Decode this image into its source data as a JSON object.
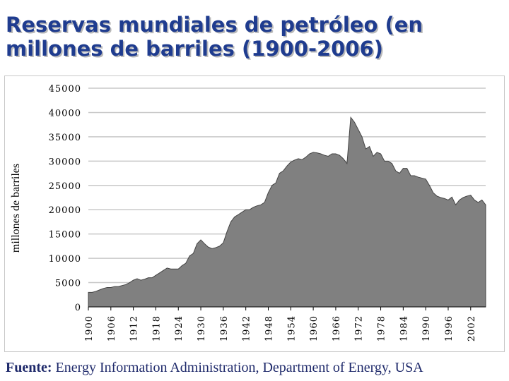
{
  "slide": {
    "title": "Reservas mundiales de petróleo (en millones de barriles (1900-2006)",
    "footer_label": "Fuente:",
    "footer_text": "Energy Information Administration, Department of Energy, USA"
  },
  "colors": {
    "title": "#1f3c8f",
    "area_fill": "#808080",
    "area_stroke": "#444444",
    "grid": "#c8c8c8",
    "footer": "#1f2a6b"
  },
  "chart_data": {
    "type": "area",
    "title": "",
    "xlabel": "",
    "ylabel": "millones de barriles",
    "xlim": [
      1900,
      2006
    ],
    "ylim": [
      0,
      45000
    ],
    "yticks": [
      0,
      5000,
      10000,
      15000,
      20000,
      25000,
      30000,
      35000,
      40000,
      45000
    ],
    "ytick_labels": [
      "0",
      "5000",
      "10000",
      "15000",
      "20000",
      "25000",
      "30000",
      "35000",
      "40000",
      "45000"
    ],
    "xticks": [
      1900,
      1906,
      1912,
      1918,
      1924,
      1930,
      1936,
      1942,
      1948,
      1954,
      1960,
      1966,
      1972,
      1978,
      1984,
      1990,
      1996,
      2002
    ],
    "xtick_labels": [
      "1900",
      "1906",
      "1912",
      "1918",
      "1924",
      "1930",
      "1936",
      "1942",
      "1948",
      "1954",
      "1960",
      "1966",
      "1972",
      "1978",
      "1984",
      "1990",
      "1996",
      "2002"
    ],
    "grid": true,
    "series": [
      {
        "name": "Reservas",
        "x": [
          1900,
          1901,
          1902,
          1903,
          1904,
          1905,
          1906,
          1907,
          1908,
          1909,
          1910,
          1911,
          1912,
          1913,
          1914,
          1915,
          1916,
          1917,
          1918,
          1919,
          1920,
          1921,
          1922,
          1923,
          1924,
          1925,
          1926,
          1927,
          1928,
          1929,
          1930,
          1931,
          1932,
          1933,
          1934,
          1935,
          1936,
          1937,
          1938,
          1939,
          1940,
          1941,
          1942,
          1943,
          1944,
          1945,
          1946,
          1947,
          1948,
          1949,
          1950,
          1951,
          1952,
          1953,
          1954,
          1955,
          1956,
          1957,
          1958,
          1959,
          1960,
          1961,
          1962,
          1963,
          1964,
          1965,
          1966,
          1967,
          1968,
          1969,
          1970,
          1971,
          1972,
          1973,
          1974,
          1975,
          1976,
          1977,
          1978,
          1979,
          1980,
          1981,
          1982,
          1983,
          1984,
          1985,
          1986,
          1987,
          1988,
          1989,
          1990,
          1991,
          1992,
          1993,
          1994,
          1995,
          1996,
          1997,
          1998,
          1999,
          2000,
          2001,
          2002,
          2003,
          2004,
          2005,
          2006
        ],
        "values": [
          3000,
          3000,
          3200,
          3500,
          3800,
          4000,
          4000,
          4200,
          4200,
          4400,
          4600,
          5000,
          5500,
          5800,
          5500,
          5700,
          6000,
          6000,
          6500,
          7000,
          7500,
          8000,
          7800,
          7800,
          7800,
          8500,
          9000,
          10500,
          11000,
          13000,
          13800,
          13000,
          12300,
          12000,
          12200,
          12500,
          13200,
          15500,
          17500,
          18500,
          19000,
          19500,
          20000,
          20000,
          20500,
          20800,
          21000,
          21500,
          23500,
          25000,
          25500,
          27500,
          28000,
          29000,
          29800,
          30200,
          30500,
          30300,
          30800,
          31500,
          31800,
          31700,
          31500,
          31200,
          31000,
          31500,
          31500,
          31200,
          30500,
          29500,
          39000,
          38000,
          36500,
          35000,
          32500,
          33000,
          31000,
          31800,
          31500,
          30000,
          30000,
          29500,
          28000,
          27500,
          28500,
          28500,
          27000,
          27000,
          26700,
          26500,
          26300,
          25000,
          23500,
          22800,
          22500,
          22300,
          22000,
          22600,
          21000,
          22000,
          22500,
          22800,
          23000,
          22000,
          21500,
          22000,
          21000
        ]
      }
    ]
  }
}
